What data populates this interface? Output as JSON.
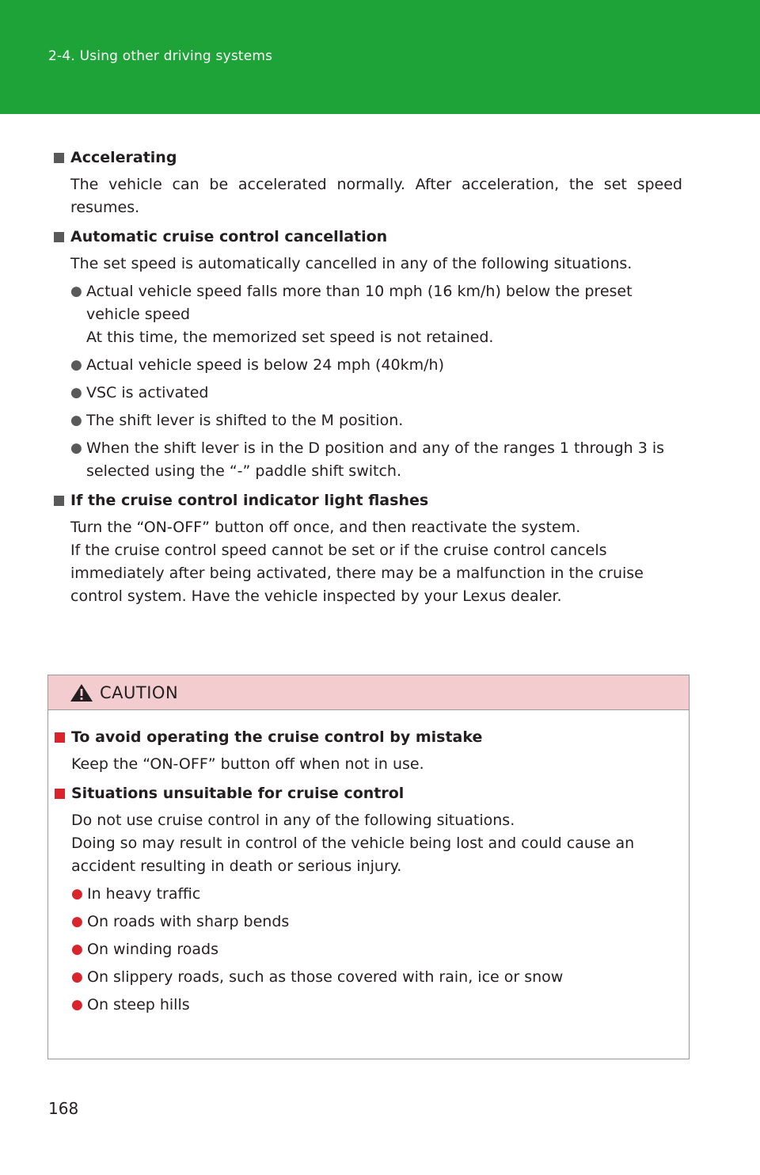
{
  "header": {
    "section_title": "2-4. Using other driving systems",
    "bg_color": "#1ea339"
  },
  "sections": [
    {
      "heading": "Accelerating",
      "paragraphs": [
        "The vehicle can be accelerated normally. After acceleration, the set speed resumes."
      ]
    },
    {
      "heading": "Automatic cruise control cancellation",
      "paragraphs": [
        "The set speed is automatically cancelled in any of the following situations."
      ],
      "bullets": [
        {
          "line1": "Actual vehicle speed falls more than 10 mph (16 km/h) below the preset vehicle speed",
          "line2": "At this time, the memorized set speed is not retained."
        },
        {
          "line1": "Actual vehicle speed is below 24 mph (40km/h)"
        },
        {
          "line1": "VSC is activated"
        },
        {
          "line1": "The shift lever is shifted to the M position."
        },
        {
          "line1": "When the shift lever is in the D position and any of the ranges 1 through 3 is selected using the “-” paddle shift switch."
        }
      ]
    },
    {
      "heading": "If the cruise control indicator light flashes",
      "paragraphs": [
        "Turn the “ON-OFF” button off once, and then reactivate the system.",
        "If the cruise control speed cannot be set or if the cruise control cancels immediately after being activated, there may be a malfunction in the cruise control system. Have the vehicle inspected by your Lexus dealer."
      ]
    }
  ],
  "caution": {
    "title": "CAUTION",
    "header_color": "#f2cccf",
    "accent_color": "#d9242b",
    "sections": [
      {
        "heading": "To avoid operating the cruise control by mistake",
        "paragraphs": [
          "Keep the “ON-OFF” button off when not in use."
        ]
      },
      {
        "heading": "Situations unsuitable for cruise control",
        "paragraphs": [
          "Do not use cruise control in any of the following situations.",
          "Doing so may result in control of the vehicle being lost and could cause an accident resulting in death or serious injury."
        ],
        "bullets": [
          "In heavy traffic",
          "On roads with sharp bends",
          "On winding roads",
          "On slippery roads, such as those covered with rain, ice or snow",
          "On steep hills"
        ]
      }
    ]
  },
  "page_number": "168",
  "icons": {
    "section_marker": "square-bullet-icon",
    "list_marker": "circle-bullet-icon",
    "caution_marker": "warning-triangle-icon"
  }
}
